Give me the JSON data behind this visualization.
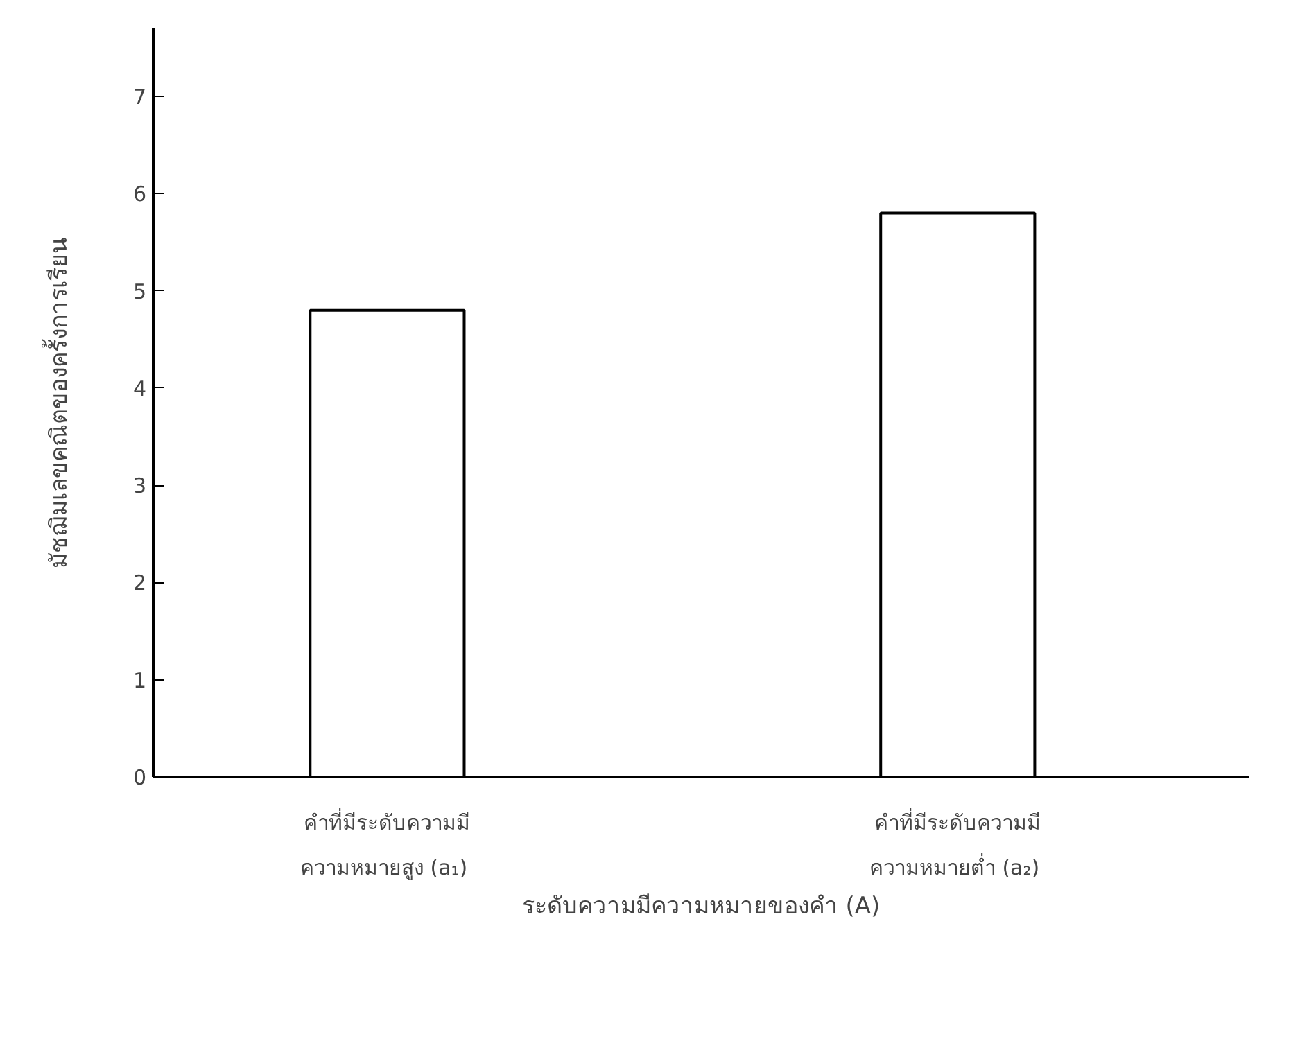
{
  "chart_data": {
    "type": "bar",
    "ylabel": "มัชฌิมเลขคณิตของครั้งการเรียน",
    "xlabel": "ระดับความมีความหมายของคำ (A)",
    "categories": [
      "คำที่มีระดับความมี\nความหมายสูง  (a₁)",
      "คำที่มีระดับความมี\nความหมายต่ำ  (a₂)"
    ],
    "values": [
      4.8,
      5.8
    ],
    "color": "#000000",
    "ylim": [
      0,
      7.7
    ],
    "yticks": [
      0,
      1,
      2,
      3,
      4,
      5,
      6,
      7
    ],
    "grid": false
  }
}
